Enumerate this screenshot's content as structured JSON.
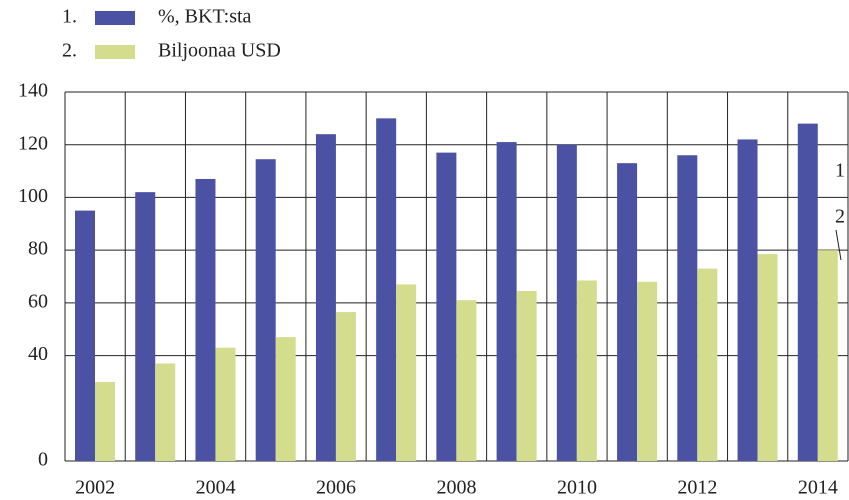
{
  "chart_data": {
    "type": "bar",
    "legend_numbers": [
      "1.",
      "2."
    ],
    "categories": [
      "2002",
      null,
      "2004",
      null,
      "2006",
      null,
      "2008",
      null,
      "2010",
      null,
      "2012",
      null,
      "2014"
    ],
    "series": [
      {
        "name": "%, BKT:sta",
        "color": "#4b52a3",
        "values": [
          95,
          102,
          107,
          114.5,
          124,
          130,
          117,
          121,
          120,
          113,
          116,
          122,
          128
        ]
      },
      {
        "name": "Biljoonaa USD",
        "color": "#d4dc8e",
        "values": [
          30,
          37,
          43,
          47,
          56.5,
          67,
          61,
          64.5,
          68.5,
          68,
          73,
          78.5,
          80
        ]
      }
    ],
    "annotations": [
      "1",
      "2"
    ],
    "ylim": [
      0,
      140
    ],
    "yticks": [
      0,
      40,
      60,
      80,
      100,
      120,
      140
    ],
    "grid": true
  }
}
